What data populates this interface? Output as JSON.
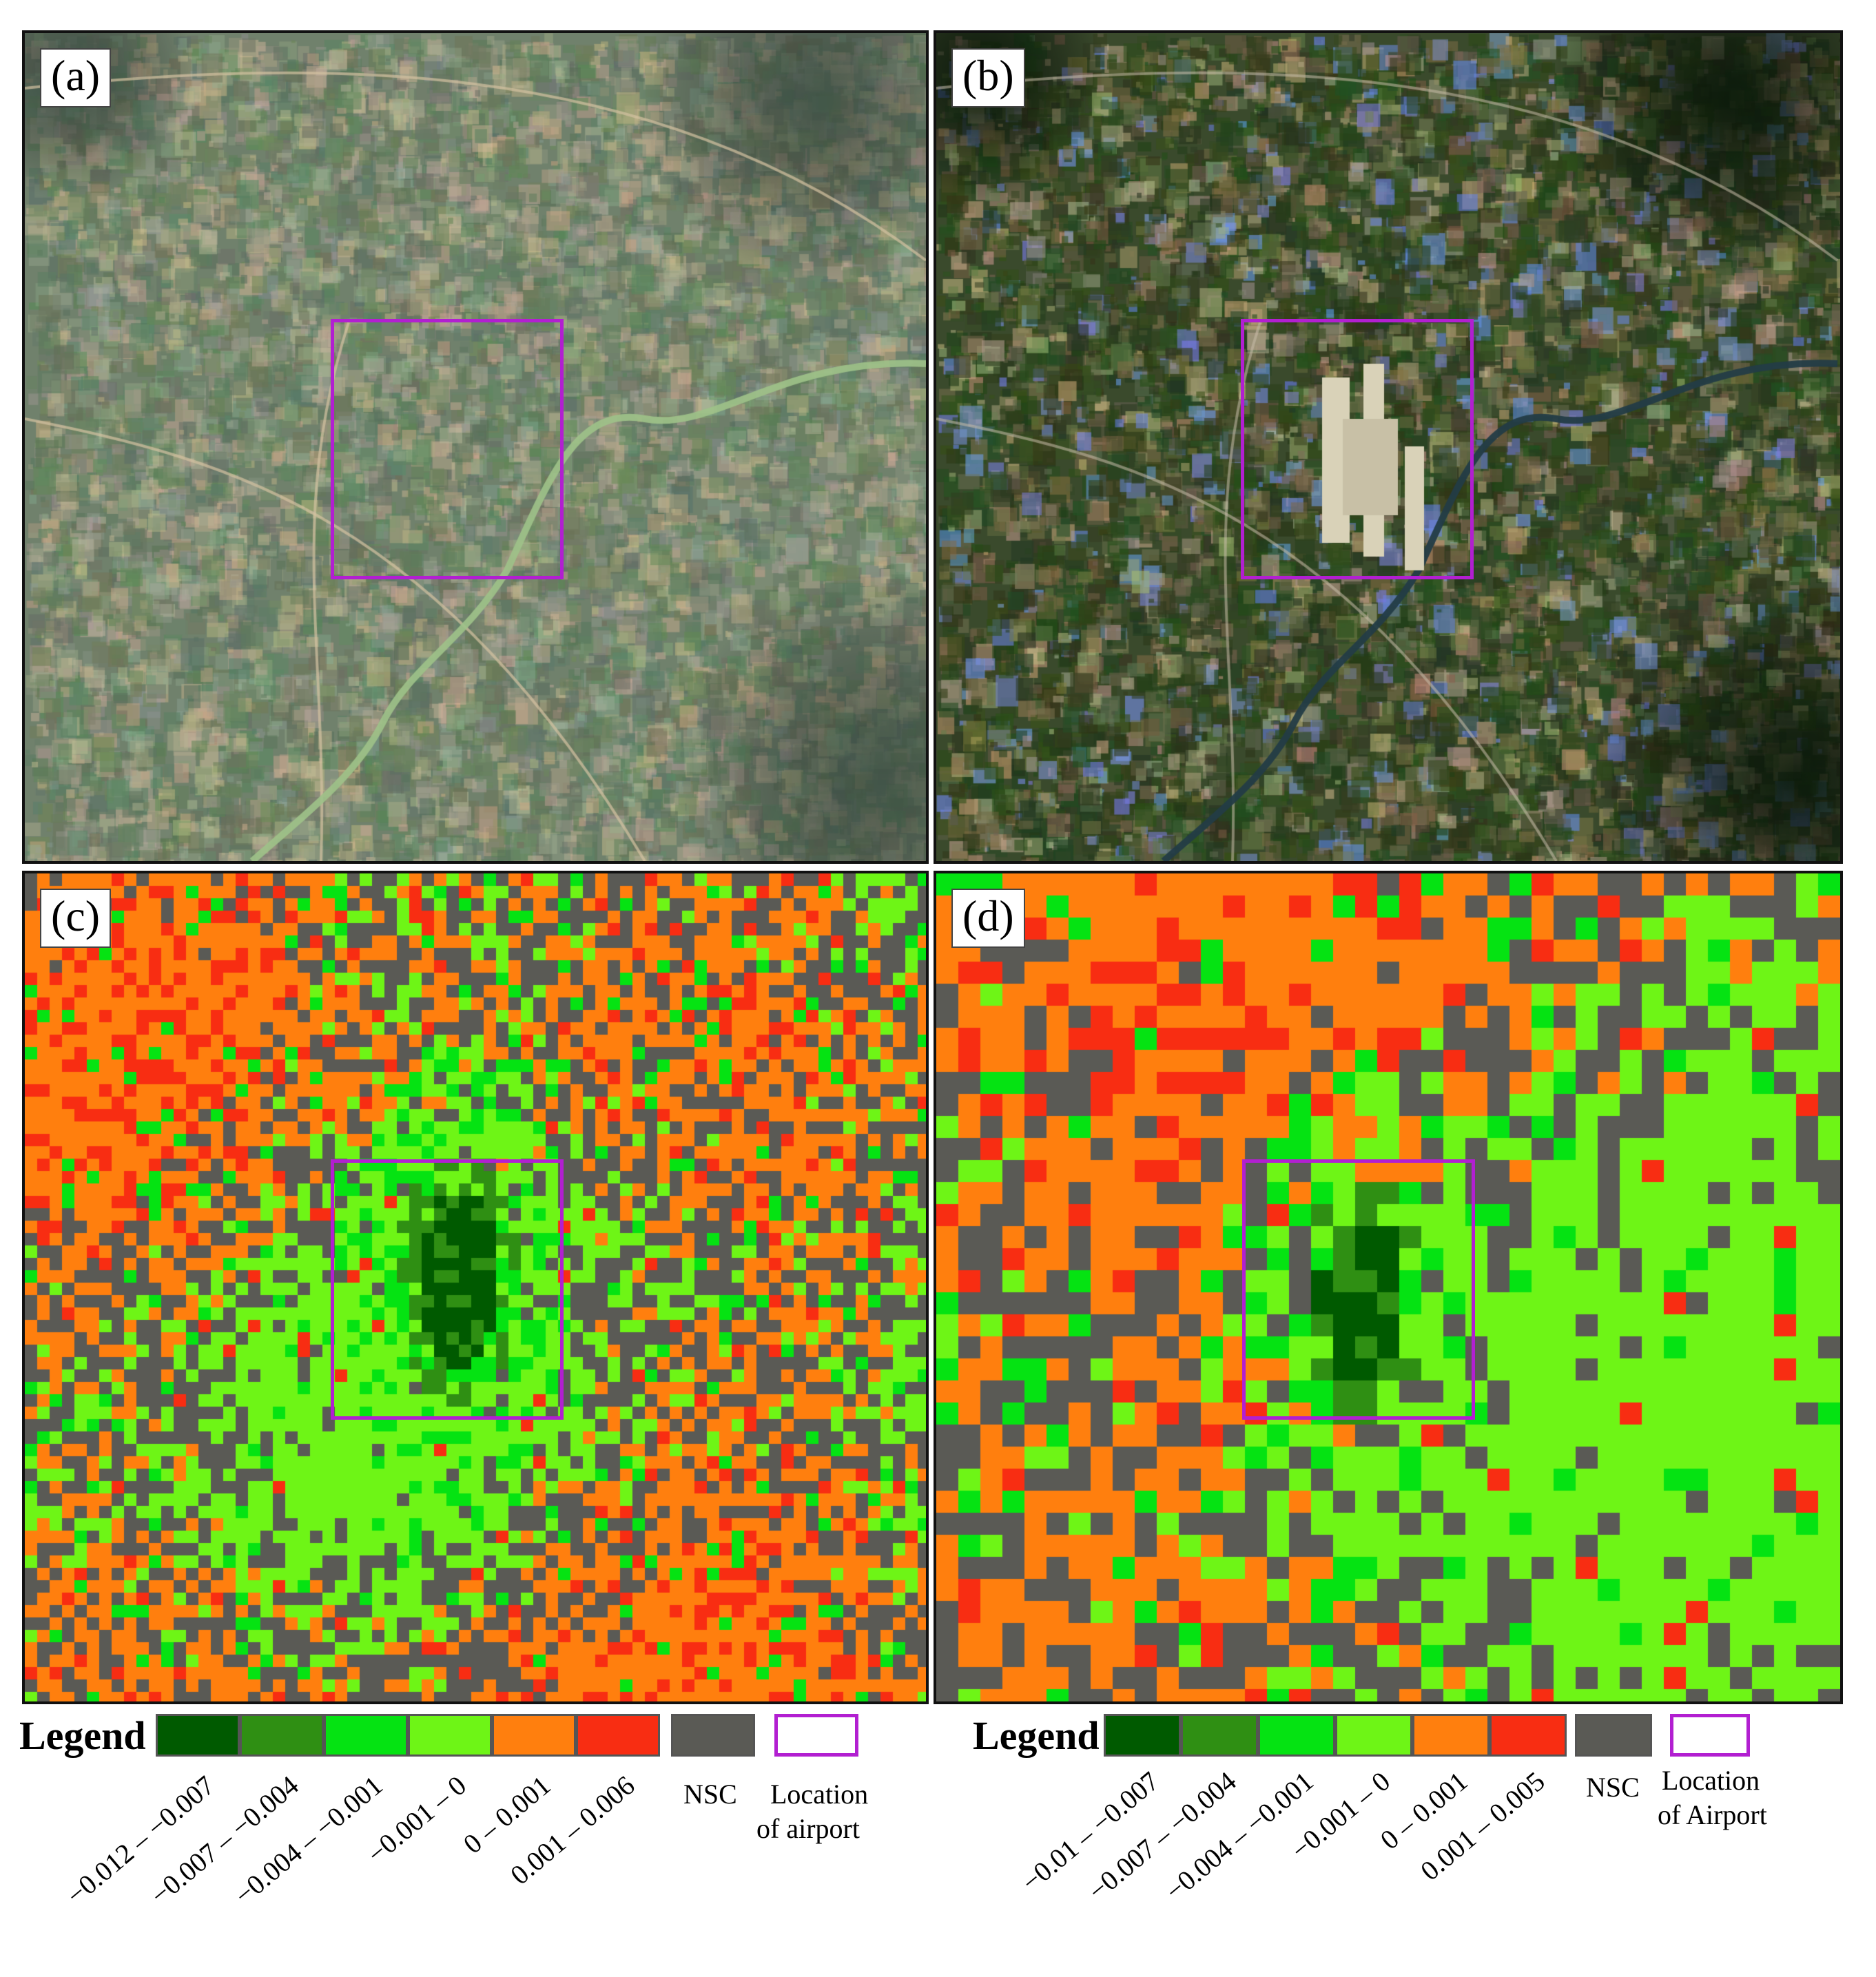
{
  "panels": [
    {
      "label": "(a)",
      "type": "satellite",
      "scene": "hazy"
    },
    {
      "label": "(b)",
      "type": "satellite",
      "scene": "clear"
    },
    {
      "label": "(c)",
      "type": "classified"
    },
    {
      "label": "(d)",
      "type": "classified"
    }
  ],
  "colors": {
    "class1": "#005a00",
    "class2": "#2f8f13",
    "class3": "#05e312",
    "class4": "#6ef516",
    "class5": "#ff7f0e",
    "class6": "#f82d12",
    "nsc": "#5a5a55",
    "airport_outline": "#b21fd1"
  },
  "legend_left": {
    "title": "Legend",
    "classes": [
      "−0.012 – −0.007",
      "−0.007 – −0.004",
      "−0.004 – −0.001",
      "−0.001 – 0",
      "0 – 0.001",
      "0.001 – 0.006"
    ],
    "nsc_label": "NSC",
    "airport_label_line1": "Location",
    "airport_label_line2": "of airport"
  },
  "legend_right": {
    "title": "Legend",
    "classes": [
      "−0.01 – −0.007",
      "−0.007 – −0.004",
      "−0.004 – −0.001",
      "−0.001 – 0",
      "0 – 0.001",
      "0.001 – 0.005"
    ],
    "nsc_label": "NSC",
    "airport_label_line1": "Location",
    "airport_label_line2": "of Airport"
  }
}
